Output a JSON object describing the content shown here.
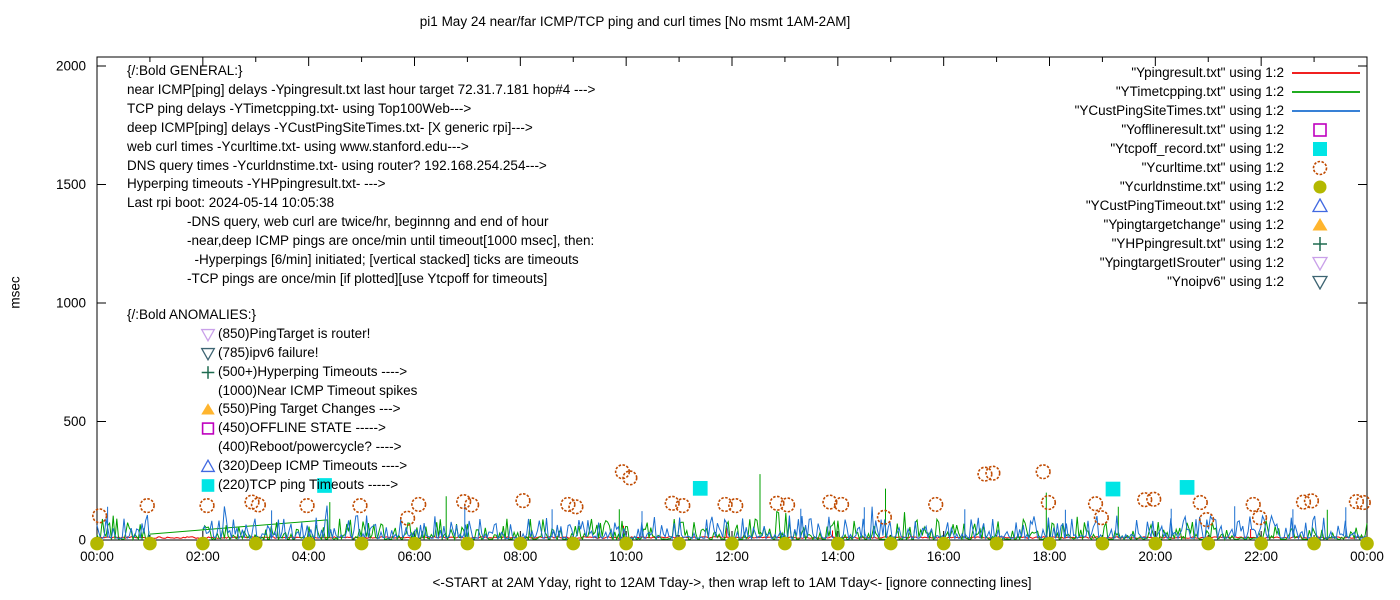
{
  "title": "pi1 May 24  near/far ICMP/TCP ping and curl times [No msmt 1AM-2AM]",
  "ylabel": "msec",
  "xlabel": "<-START at 2AM Yday, right to 12AM Tday->, then wrap left to 1AM Tday<- [ignore connecting lines]",
  "axes": {
    "ylim": [
      0,
      2000
    ],
    "xlim_hours": [
      0,
      24
    ],
    "y_ticks": [
      0,
      500,
      1000,
      1500,
      2000
    ],
    "x_tick_hours": [
      0,
      2,
      4,
      6,
      8,
      10,
      12,
      14,
      16,
      18,
      20,
      22,
      24
    ],
    "x_tick_labels": [
      "00:00",
      "02:00",
      "04:00",
      "06:00",
      "08:00",
      "10:00",
      "12:00",
      "14:00",
      "16:00",
      "18:00",
      "20:00",
      "22:00",
      "00:00"
    ],
    "minor_tick_every_hours": 1,
    "grid": false
  },
  "legend": {
    "position": "top-right",
    "items": [
      {
        "label": "\"Ypingresult.txt\" using 1:2",
        "swatch": "line",
        "color": "#ee0000"
      },
      {
        "label": "\"YTimetcpping.txt\" using 1:2",
        "swatch": "line",
        "color": "#00a000"
      },
      {
        "label": "\"YCustPingSiteTimes.txt\" using 1:2",
        "swatch": "line",
        "color": "#1b6fd0"
      },
      {
        "label": "\"Yofflineresult.txt\" using 1:2",
        "swatch": "square-open",
        "color": "#bf00bf"
      },
      {
        "label": "\"Ytcpoff_record.txt\" using 1:2",
        "swatch": "square-filled",
        "color": "#00e5e5"
      },
      {
        "label": "\"Ycurltime.txt\" using 1:2",
        "swatch": "circle-open",
        "color": "#c04a00"
      },
      {
        "label": "\"Ycurldnstime.txt\" using 1:2",
        "swatch": "circle-filled",
        "color": "#b3b800"
      },
      {
        "label": "\"YCustPingTimeout.txt\" using 1:2",
        "swatch": "triangle-open",
        "color": "#4169e1"
      },
      {
        "label": "\"Ypingtargetchange\" using 1:2",
        "swatch": "triangle-filled",
        "color": "#ffb52e"
      },
      {
        "label": "\"YHPpingresult.txt\" using 1:2",
        "swatch": "plus",
        "color": "#1d6b4f"
      },
      {
        "label": "\"YpingtargetISrouter\" using 1:2",
        "swatch": "triangle-down-open",
        "color": "#c9a0e9"
      },
      {
        "label": "\"Ynoipv6\" using 1:2",
        "swatch": "triangle-down-open",
        "color": "#3d6472"
      }
    ]
  },
  "annotations": {
    "general_lines": [
      "{/:Bold GENERAL:}",
      "near ICMP[ping] delays -Ypingresult.txt last hour target 72.31.7.181 hop#4 --->",
      "TCP ping delays -YTimetcpping.txt- using Top100Web--->",
      "deep ICMP[ping] delays -YCustPingSiteTimes.txt- [X generic rpi]--->",
      "web curl times -Ycurltime.txt- using www.stanford.edu--->",
      "DNS query times -Ycurldnstime.txt- using router? 192.168.254.254--->",
      "Hyperping timeouts -YHPpingresult.txt- --->",
      "Last rpi boot: 2024-05-14 10:05:38",
      "                -DNS query, web curl are twice/hr, beginnng and end of hour",
      "                -near,deep ICMP pings are once/min until timeout[1000 msec], then:",
      "                  -Hyperpings [6/min] initiated; [vertical stacked] ticks are timeouts",
      "                -TCP pings are once/min [if plotted][use Ytcpoff for timeouts]"
    ],
    "anomalies_header": "{/:Bold ANOMALIES:}",
    "anomalies": [
      {
        "marker": "triangle-down-open",
        "color": "#c9a0e9",
        "text": "(850)PingTarget is router!"
      },
      {
        "marker": "triangle-down-open",
        "color": "#3d6472",
        "text": "(785)ipv6 failure!"
      },
      {
        "marker": "plus",
        "color": "#1d6b4f",
        "text": "(500+)Hyperping Timeouts ---->"
      },
      {
        "marker": "none",
        "color": "",
        "text": "(1000)Near ICMP Timeout spikes"
      },
      {
        "marker": "triangle-filled",
        "color": "#ffb52e",
        "text": "(550)Ping Target Changes --->"
      },
      {
        "marker": "square-open",
        "color": "#bf00bf",
        "text": "(450)OFFLINE STATE ----->"
      },
      {
        "marker": "none",
        "color": "",
        "text": "(400)Reboot/powercycle? ---->"
      },
      {
        "marker": "triangle-open",
        "color": "#4169e1",
        "text": "(320)Deep ICMP Timeouts ---->"
      },
      {
        "marker": "square-filled",
        "color": "#00e5e5",
        "text": "(220)TCP ping Timeouts ----->"
      }
    ]
  },
  "chart_data": {
    "type": "line+scatter",
    "x_unit": "hours (00:00-24:00)",
    "y_unit": "msec",
    "note": "no measurement gap between hour 1 and hour 2",
    "series": [
      {
        "name": "Ypingresult.txt",
        "type": "line",
        "color": "#ee0000",
        "seed": 11,
        "noise_min": 7,
        "noise_max": 14,
        "flat": true,
        "segments": [
          [
            0,
            24
          ]
        ],
        "spikes": [
          [
            9.95,
            60
          ],
          [
            11.9,
            52
          ],
          [
            13.9,
            40
          ],
          [
            21.8,
            46
          ]
        ]
      },
      {
        "name": "YTimetcpping.txt",
        "type": "line",
        "color": "#00a000",
        "seed": 7,
        "noise_min": 3,
        "noise_max": 92,
        "segments": [
          [
            0,
            1
          ],
          [
            2,
            24
          ]
        ],
        "spikes": [
          [
            4.4,
            160
          ],
          [
            6.6,
            185
          ],
          [
            9.87,
            130
          ],
          [
            12.53,
            278
          ],
          [
            14.9,
            217
          ],
          [
            17.94,
            200
          ],
          [
            19.3,
            140
          ],
          [
            23.25,
            128
          ]
        ],
        "connect_line": [
          [
            1,
            25
          ],
          [
            4.35,
            85
          ],
          [
            4.36,
            3
          ]
        ]
      },
      {
        "name": "YCustPingSiteTimes.txt",
        "type": "line",
        "color": "#1b6fd0",
        "seed": 23,
        "noise_min": 7,
        "noise_max": 108,
        "segments": [
          [
            0,
            1
          ],
          [
            2,
            24
          ]
        ],
        "spikes": [
          [
            0.2,
            140
          ],
          [
            3.3,
            125
          ],
          [
            6.95,
            142
          ],
          [
            8.6,
            130
          ],
          [
            10.3,
            122
          ],
          [
            13.3,
            132
          ],
          [
            14.5,
            138
          ],
          [
            16.4,
            130
          ],
          [
            18.3,
            128
          ],
          [
            20.3,
            132
          ],
          [
            21.5,
            142
          ],
          [
            22.6,
            130
          ],
          [
            23.6,
            138
          ]
        ]
      },
      {
        "name": "Yofflineresult.txt",
        "type": "scatter",
        "marker": "square-open",
        "color": "#bf00bf",
        "points": []
      },
      {
        "name": "Ytcpoff_record.txt",
        "type": "scatter",
        "marker": "square-filled",
        "color": "#00e5e5",
        "points": [
          [
            4.3,
            230
          ],
          [
            11.4,
            218
          ],
          [
            19.2,
            215
          ],
          [
            20.6,
            222
          ]
        ]
      },
      {
        "name": "Ycurltime.txt",
        "type": "scatter",
        "marker": "circle-open",
        "color": "#c04a00",
        "points": [
          [
            0.05,
            102
          ],
          [
            0.95,
            145
          ],
          [
            2.08,
            145
          ],
          [
            2.93,
            160
          ],
          [
            3.05,
            148
          ],
          [
            3.97,
            145
          ],
          [
            4.97,
            145
          ],
          [
            5.87,
            92
          ],
          [
            6.08,
            150
          ],
          [
            6.93,
            162
          ],
          [
            7.08,
            148
          ],
          [
            8.05,
            166
          ],
          [
            8.9,
            150
          ],
          [
            9.05,
            140
          ],
          [
            9.93,
            288
          ],
          [
            10.07,
            262
          ],
          [
            10.87,
            155
          ],
          [
            11.07,
            145
          ],
          [
            11.87,
            150
          ],
          [
            12.07,
            145
          ],
          [
            12.85,
            155
          ],
          [
            13.05,
            148
          ],
          [
            13.85,
            160
          ],
          [
            14.07,
            150
          ],
          [
            14.88,
            96
          ],
          [
            15.85,
            150
          ],
          [
            16.78,
            278
          ],
          [
            16.93,
            282
          ],
          [
            17.88,
            288
          ],
          [
            17.98,
            158
          ],
          [
            18.87,
            153
          ],
          [
            18.98,
            94
          ],
          [
            19.8,
            170
          ],
          [
            19.97,
            172
          ],
          [
            20.85,
            158
          ],
          [
            20.97,
            86
          ],
          [
            21.85,
            150
          ],
          [
            21.97,
            94
          ],
          [
            22.8,
            160
          ],
          [
            22.95,
            165
          ],
          [
            23.8,
            162
          ],
          [
            23.93,
            158
          ]
        ]
      },
      {
        "name": "Ycurldnstime.txt",
        "type": "scatter",
        "marker": "circle-filled",
        "color": "#b3b800",
        "points": [
          [
            0,
            2
          ],
          [
            1,
            2
          ],
          [
            2,
            2
          ],
          [
            3,
            2
          ],
          [
            4,
            2
          ],
          [
            5,
            2
          ],
          [
            6,
            2
          ],
          [
            7,
            2
          ],
          [
            8,
            2
          ],
          [
            9,
            2
          ],
          [
            10,
            2
          ],
          [
            11,
            2
          ],
          [
            12,
            2
          ],
          [
            13,
            2
          ],
          [
            14,
            2
          ],
          [
            15,
            2
          ],
          [
            16,
            2
          ],
          [
            17,
            2
          ],
          [
            18,
            2
          ],
          [
            19,
            2
          ],
          [
            20,
            2
          ],
          [
            21,
            2
          ],
          [
            22,
            2
          ],
          [
            23,
            2
          ],
          [
            24,
            2
          ]
        ]
      },
      {
        "name": "YCustPingTimeout.txt",
        "type": "scatter",
        "marker": "triangle-open",
        "color": "#4169e1",
        "points": []
      },
      {
        "name": "Ypingtargetchange",
        "type": "scatter",
        "marker": "triangle-filled",
        "color": "#ffb52e",
        "points": []
      },
      {
        "name": "YHPpingresult.txt",
        "type": "scatter",
        "marker": "plus",
        "color": "#1d6b4f",
        "points": []
      },
      {
        "name": "YpingtargetISrouter",
        "type": "scatter",
        "marker": "triangle-down-open",
        "color": "#c9a0e9",
        "points": []
      },
      {
        "name": "Ynoipv6",
        "type": "scatter",
        "marker": "triangle-down-open",
        "color": "#3d6472",
        "points": []
      }
    ]
  }
}
